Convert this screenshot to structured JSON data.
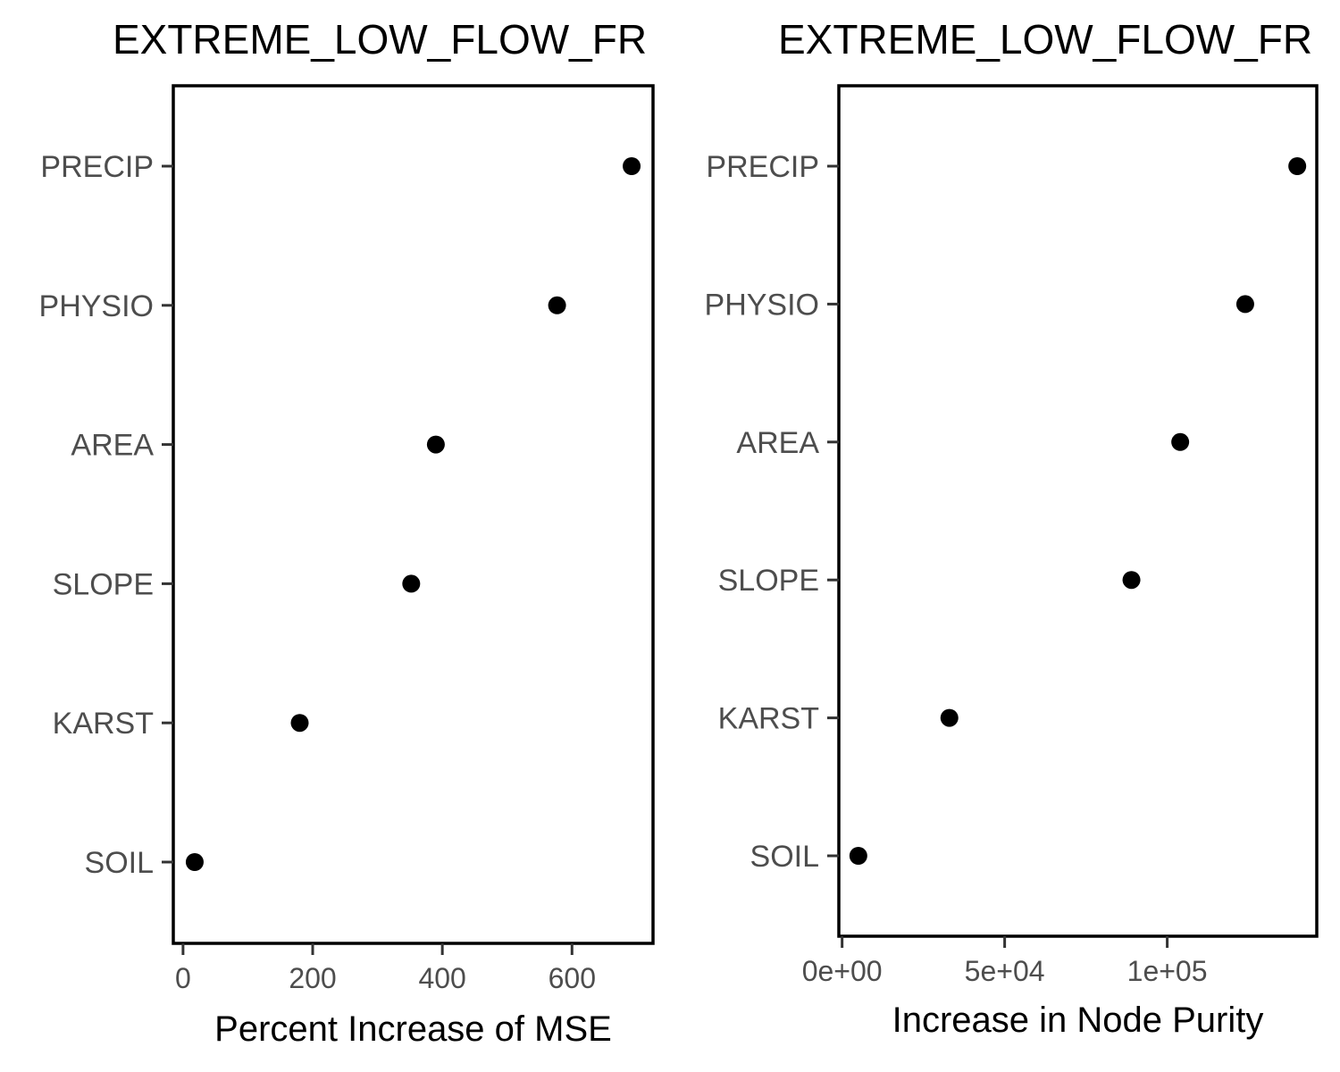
{
  "chart_data": [
    {
      "type": "scatter",
      "title": "EXTREME_LOW_FLOW_FR",
      "xlabel": "Percent Increase of MSE",
      "ylabel": "",
      "categories": [
        "PRECIP",
        "PHYSIO",
        "AREA",
        "SLOPE",
        "KARST",
        "SOIL"
      ],
      "values": [
        692,
        577,
        390,
        352,
        180,
        18
      ],
      "xlim": [
        -15,
        725
      ],
      "xticks": [
        0,
        200,
        400,
        600
      ],
      "xtick_labels": [
        "0",
        "200",
        "400",
        "600"
      ],
      "grid": false,
      "color": "#000000"
    },
    {
      "type": "scatter",
      "title": "EXTREME_LOW_FLOW_FR",
      "xlabel": "Increase in Node Purity",
      "ylabel": "",
      "categories": [
        "PRECIP",
        "PHYSIO",
        "AREA",
        "SLOPE",
        "KARST",
        "SOIL"
      ],
      "values": [
        140000,
        124000,
        104000,
        89000,
        33000,
        5000
      ],
      "xlim": [
        -1000,
        146000
      ],
      "xticks": [
        0,
        50000,
        100000
      ],
      "xtick_labels": [
        "0e+00",
        "5e+04",
        "1e+05"
      ],
      "grid": false,
      "color": "#000000"
    }
  ]
}
